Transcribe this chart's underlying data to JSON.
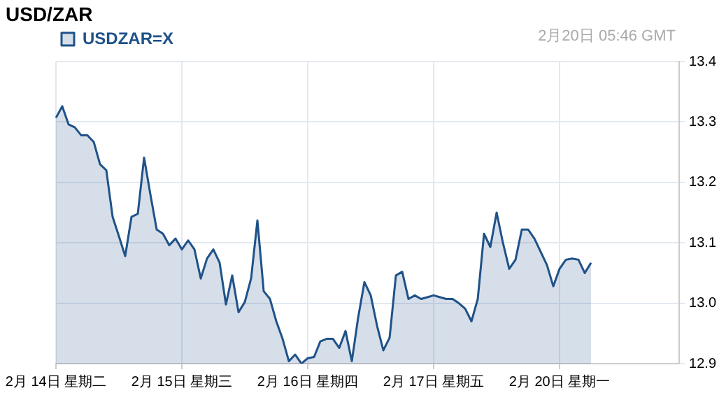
{
  "chart_data": {
    "type": "area",
    "title": "USD/ZAR",
    "annotations": [
      "2月20日 05:46 GMT"
    ],
    "categories": [
      "2月 14日 星期二",
      null,
      null,
      null,
      null,
      null,
      null,
      null,
      null,
      null,
      null,
      null,
      null,
      null,
      null,
      null,
      null,
      null,
      null,
      null,
      "2月 15日 星期三",
      null,
      null,
      null,
      null,
      null,
      null,
      null,
      null,
      null,
      null,
      null,
      null,
      null,
      null,
      null,
      null,
      null,
      null,
      null,
      "2月 16日 星期四",
      null,
      null,
      null,
      null,
      null,
      null,
      null,
      null,
      null,
      null,
      null,
      null,
      null,
      null,
      null,
      null,
      null,
      null,
      null,
      "2月 17日 星期五",
      null,
      null,
      null,
      null,
      null,
      null,
      null,
      null,
      null,
      null,
      null,
      null,
      null,
      null,
      null,
      null,
      null,
      null,
      null,
      "2月 20日 星期一",
      null,
      null,
      null,
      null,
      null,
      null,
      null,
      null,
      null,
      null,
      null,
      null,
      null,
      null,
      null,
      null,
      null,
      null,
      null
    ],
    "ylim": [
      12.9,
      13.4
    ],
    "yticks": [
      {
        "value": 12.9,
        "label": "12.9"
      },
      {
        "value": 13.0,
        "label": "13.0"
      },
      {
        "value": 13.1,
        "label": "13.1"
      },
      {
        "value": 13.2,
        "label": "13.2"
      },
      {
        "value": 13.3,
        "label": "13.3"
      },
      {
        "value": 13.4,
        "label": "13.4"
      }
    ],
    "grid": true,
    "legend": "top left",
    "marker": "none",
    "line_style": "solid",
    "series": [
      {
        "name": "USDZAR=X",
        "color": "#1f5288",
        "values": [
          13.307,
          13.326,
          13.296,
          13.291,
          13.278,
          13.278,
          13.267,
          13.23,
          13.22,
          13.143,
          13.111,
          13.078,
          13.143,
          13.148,
          13.241,
          13.18,
          13.122,
          13.115,
          13.096,
          13.107,
          13.089,
          13.104,
          13.089,
          13.041,
          13.074,
          13.089,
          13.067,
          12.998,
          13.046,
          12.985,
          13.002,
          13.041,
          13.137,
          13.02,
          13.007,
          12.97,
          12.941,
          12.904,
          12.915,
          12.9,
          12.909,
          12.911,
          12.937,
          12.941,
          12.941,
          12.926,
          12.954,
          12.904,
          12.976,
          13.035,
          13.013,
          12.963,
          12.922,
          12.943,
          13.046,
          13.052,
          13.007,
          13.013,
          13.007,
          13.01,
          13.013,
          13.01,
          13.007,
          13.007,
          13.0,
          12.991,
          12.97,
          13.007,
          13.115,
          13.093,
          13.15,
          13.1,
          13.057,
          13.072,
          13.122,
          13.122,
          13.107,
          13.085,
          13.063,
          13.028,
          13.057,
          13.072,
          13.074,
          13.072,
          13.05,
          13.067,
          null,
          null,
          null,
          null,
          null,
          null,
          null,
          null,
          null,
          null,
          null,
          null,
          null,
          null
        ]
      }
    ]
  }
}
